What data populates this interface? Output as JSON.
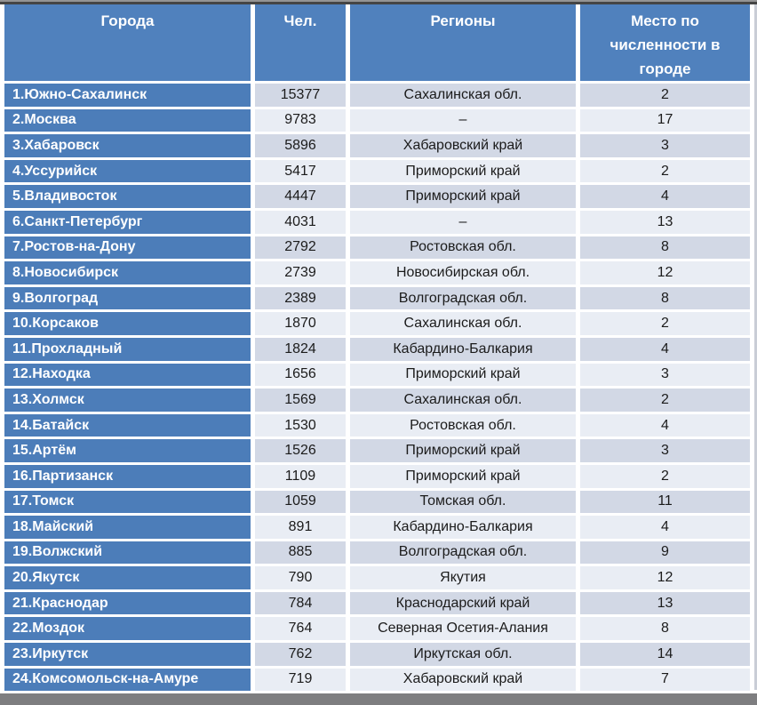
{
  "header_labels": [
    "Города",
    "Чел.",
    "Регионы",
    "Место по\nчисленности в\nгороде"
  ],
  "colors": {
    "header_bg": "#5081BD",
    "row_label_bg": "#4C7DB9",
    "band_dark": "#D2D8E5",
    "band_light": "#E9EDF4",
    "separator": "#FFFFFF",
    "header_text": "#FFFFFF",
    "cell_text": "#1B1B1B",
    "top_bar": "#454545",
    "bottom_bar": "#7E7E80"
  },
  "chart_data": {
    "type": "table",
    "columns": [
      "Города",
      "Чел.",
      "Регионы",
      "Место по численности в городе"
    ],
    "rows": [
      {
        "city": "1.Южно-Сахалинск",
        "people": 15377,
        "region": "Сахалинская обл.",
        "rank": 2
      },
      {
        "city": "2.Москва",
        "people": 9783,
        "region": "–",
        "rank": 17
      },
      {
        "city": "3.Хабаровск",
        "people": 5896,
        "region": "Хабаровский край",
        "rank": 3
      },
      {
        "city": "4.Уссурийск",
        "people": 5417,
        "region": "Приморский край",
        "rank": 2
      },
      {
        "city": "5.Владивосток",
        "people": 4447,
        "region": "Приморский край",
        "rank": 4
      },
      {
        "city": "6.Санкт-Петербург",
        "people": 4031,
        "region": "–",
        "rank": 13
      },
      {
        "city": "7.Ростов-на-Дону",
        "people": 2792,
        "region": "Ростовская обл.",
        "rank": 8
      },
      {
        "city": "8.Новосибирск",
        "people": 2739,
        "region": "Новосибирская обл.",
        "rank": 12
      },
      {
        "city": "9.Волгоград",
        "people": 2389,
        "region": "Волгоградская обл.",
        "rank": 8
      },
      {
        "city": "10.Корсаков",
        "people": 1870,
        "region": "Сахалинская обл.",
        "rank": 2
      },
      {
        "city": "11.Прохладный",
        "people": 1824,
        "region": "Кабардино-Балкария",
        "rank": 4
      },
      {
        "city": "12.Находка",
        "people": 1656,
        "region": "Приморский край",
        "rank": 3
      },
      {
        "city": "13.Холмск",
        "people": 1569,
        "region": "Сахалинская обл.",
        "rank": 2
      },
      {
        "city": "14.Батайск",
        "people": 1530,
        "region": "Ростовская обл.",
        "rank": 4
      },
      {
        "city": "15.Артём",
        "people": 1526,
        "region": "Приморский край",
        "rank": 3
      },
      {
        "city": "16.Партизанск",
        "people": 1109,
        "region": "Приморский край",
        "rank": 2
      },
      {
        "city": "17.Томск",
        "people": 1059,
        "region": "Томская обл.",
        "rank": 11
      },
      {
        "city": "18.Майский",
        "people": 891,
        "region": "Кабардино-Балкария",
        "rank": 4
      },
      {
        "city": "19.Волжский",
        "people": 885,
        "region": "Волгоградская обл.",
        "rank": 9
      },
      {
        "city": "20.Якутск",
        "people": 790,
        "region": "Якутия",
        "rank": 12
      },
      {
        "city": "21.Краснодар",
        "people": 784,
        "region": "Краснодарский край",
        "rank": 13
      },
      {
        "city": "22.Моздок",
        "people": 764,
        "region": "Северная Осетия-Алания",
        "rank": 8
      },
      {
        "city": "23.Иркутск",
        "people": 762,
        "region": "Иркутская обл.",
        "rank": 14
      },
      {
        "city": "24.Комсомольск-на-Амуре",
        "people": 719,
        "region": "Хабаровский край",
        "rank": 7
      }
    ]
  }
}
